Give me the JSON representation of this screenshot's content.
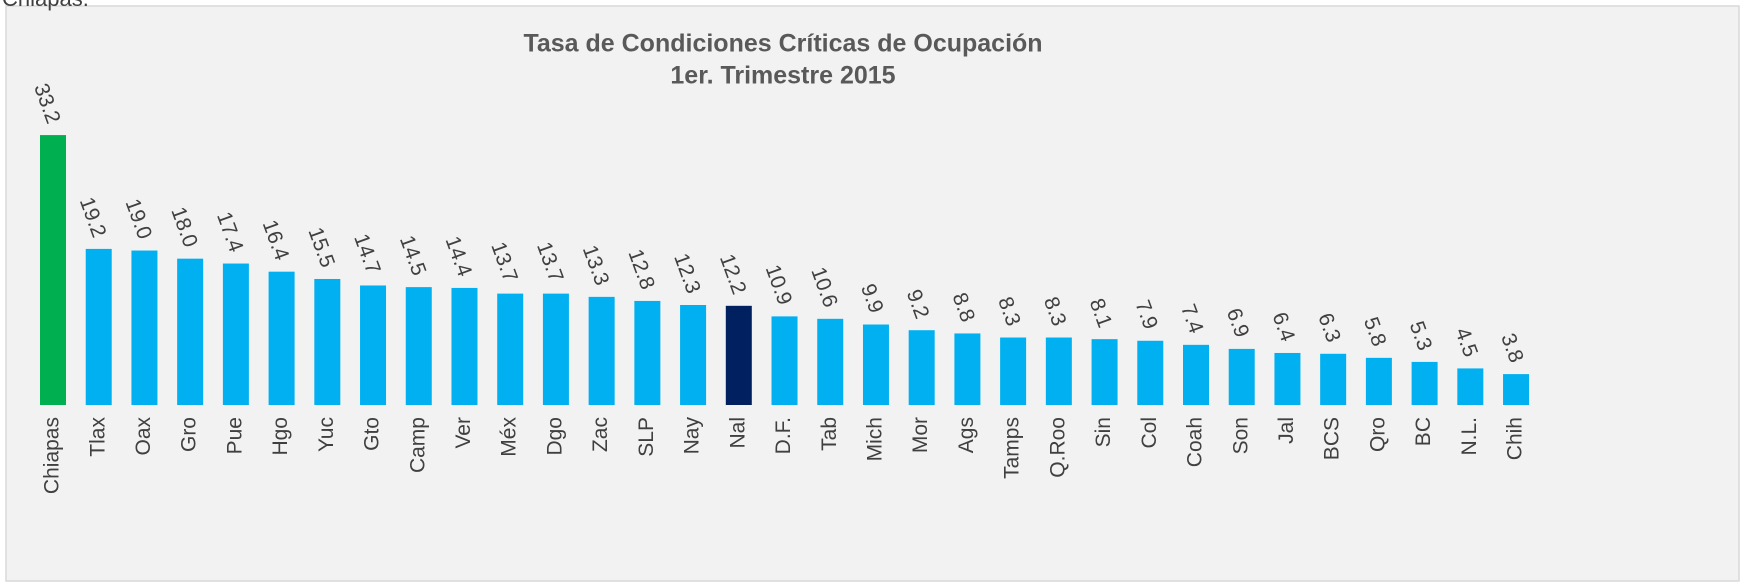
{
  "header_text": "Chiapas.",
  "chart_data": {
    "type": "bar",
    "title": "Tasa de Condiciones Críticas de Ocupación",
    "subtitle": "1er. Trimestre 2015",
    "categories": [
      "Chiapas",
      "Tlax",
      "Oax",
      "Gro",
      "Pue",
      "Hgo",
      "Yuc",
      "Gto",
      "Camp",
      "Ver",
      "Méx",
      "Dgo",
      "Zac",
      "SLP",
      "Nay",
      "Nal",
      "D.F.",
      "Tab",
      "Mich",
      "Mor",
      "Ags",
      "Tamps",
      "Q.Roo",
      "Sin",
      "Col",
      "Coah",
      "Son",
      "Jal",
      "BCS",
      "Qro",
      "BC",
      "N.L.",
      "Chih"
    ],
    "values": [
      33.2,
      19.2,
      19.0,
      18.0,
      17.4,
      16.4,
      15.5,
      14.7,
      14.5,
      14.4,
      13.7,
      13.7,
      13.3,
      12.8,
      12.3,
      12.2,
      10.9,
      10.6,
      9.9,
      9.2,
      8.8,
      8.3,
      8.3,
      8.1,
      7.9,
      7.4,
      6.9,
      6.4,
      6.3,
      5.8,
      5.3,
      4.5,
      3.8
    ],
    "value_labels": [
      "33.2",
      "19.2",
      "19.0",
      "18.0",
      "17.4",
      "16.4",
      "15.5",
      "14.7",
      "14.5",
      "14.4",
      "13.7",
      "13.7",
      "13.3",
      "12.8",
      "12.3",
      "12.2",
      "10.9",
      "10.6",
      "9.9",
      "9.2",
      "8.8",
      "8.3",
      "8.3",
      "8.1",
      "7.9",
      "7.4",
      "6.9",
      "6.4",
      "6.3",
      "5.8",
      "5.3",
      "4.5",
      "3.8"
    ],
    "colors": [
      "#00b050",
      "#00b0f0",
      "#00b0f0",
      "#00b0f0",
      "#00b0f0",
      "#00b0f0",
      "#00b0f0",
      "#00b0f0",
      "#00b0f0",
      "#00b0f0",
      "#00b0f0",
      "#00b0f0",
      "#00b0f0",
      "#00b0f0",
      "#00b0f0",
      "#002060",
      "#00b0f0",
      "#00b0f0",
      "#00b0f0",
      "#00b0f0",
      "#00b0f0",
      "#00b0f0",
      "#00b0f0",
      "#00b0f0",
      "#00b0f0",
      "#00b0f0",
      "#00b0f0",
      "#00b0f0",
      "#00b0f0",
      "#00b0f0",
      "#00b0f0",
      "#00b0f0",
      "#00b0f0"
    ]
  }
}
